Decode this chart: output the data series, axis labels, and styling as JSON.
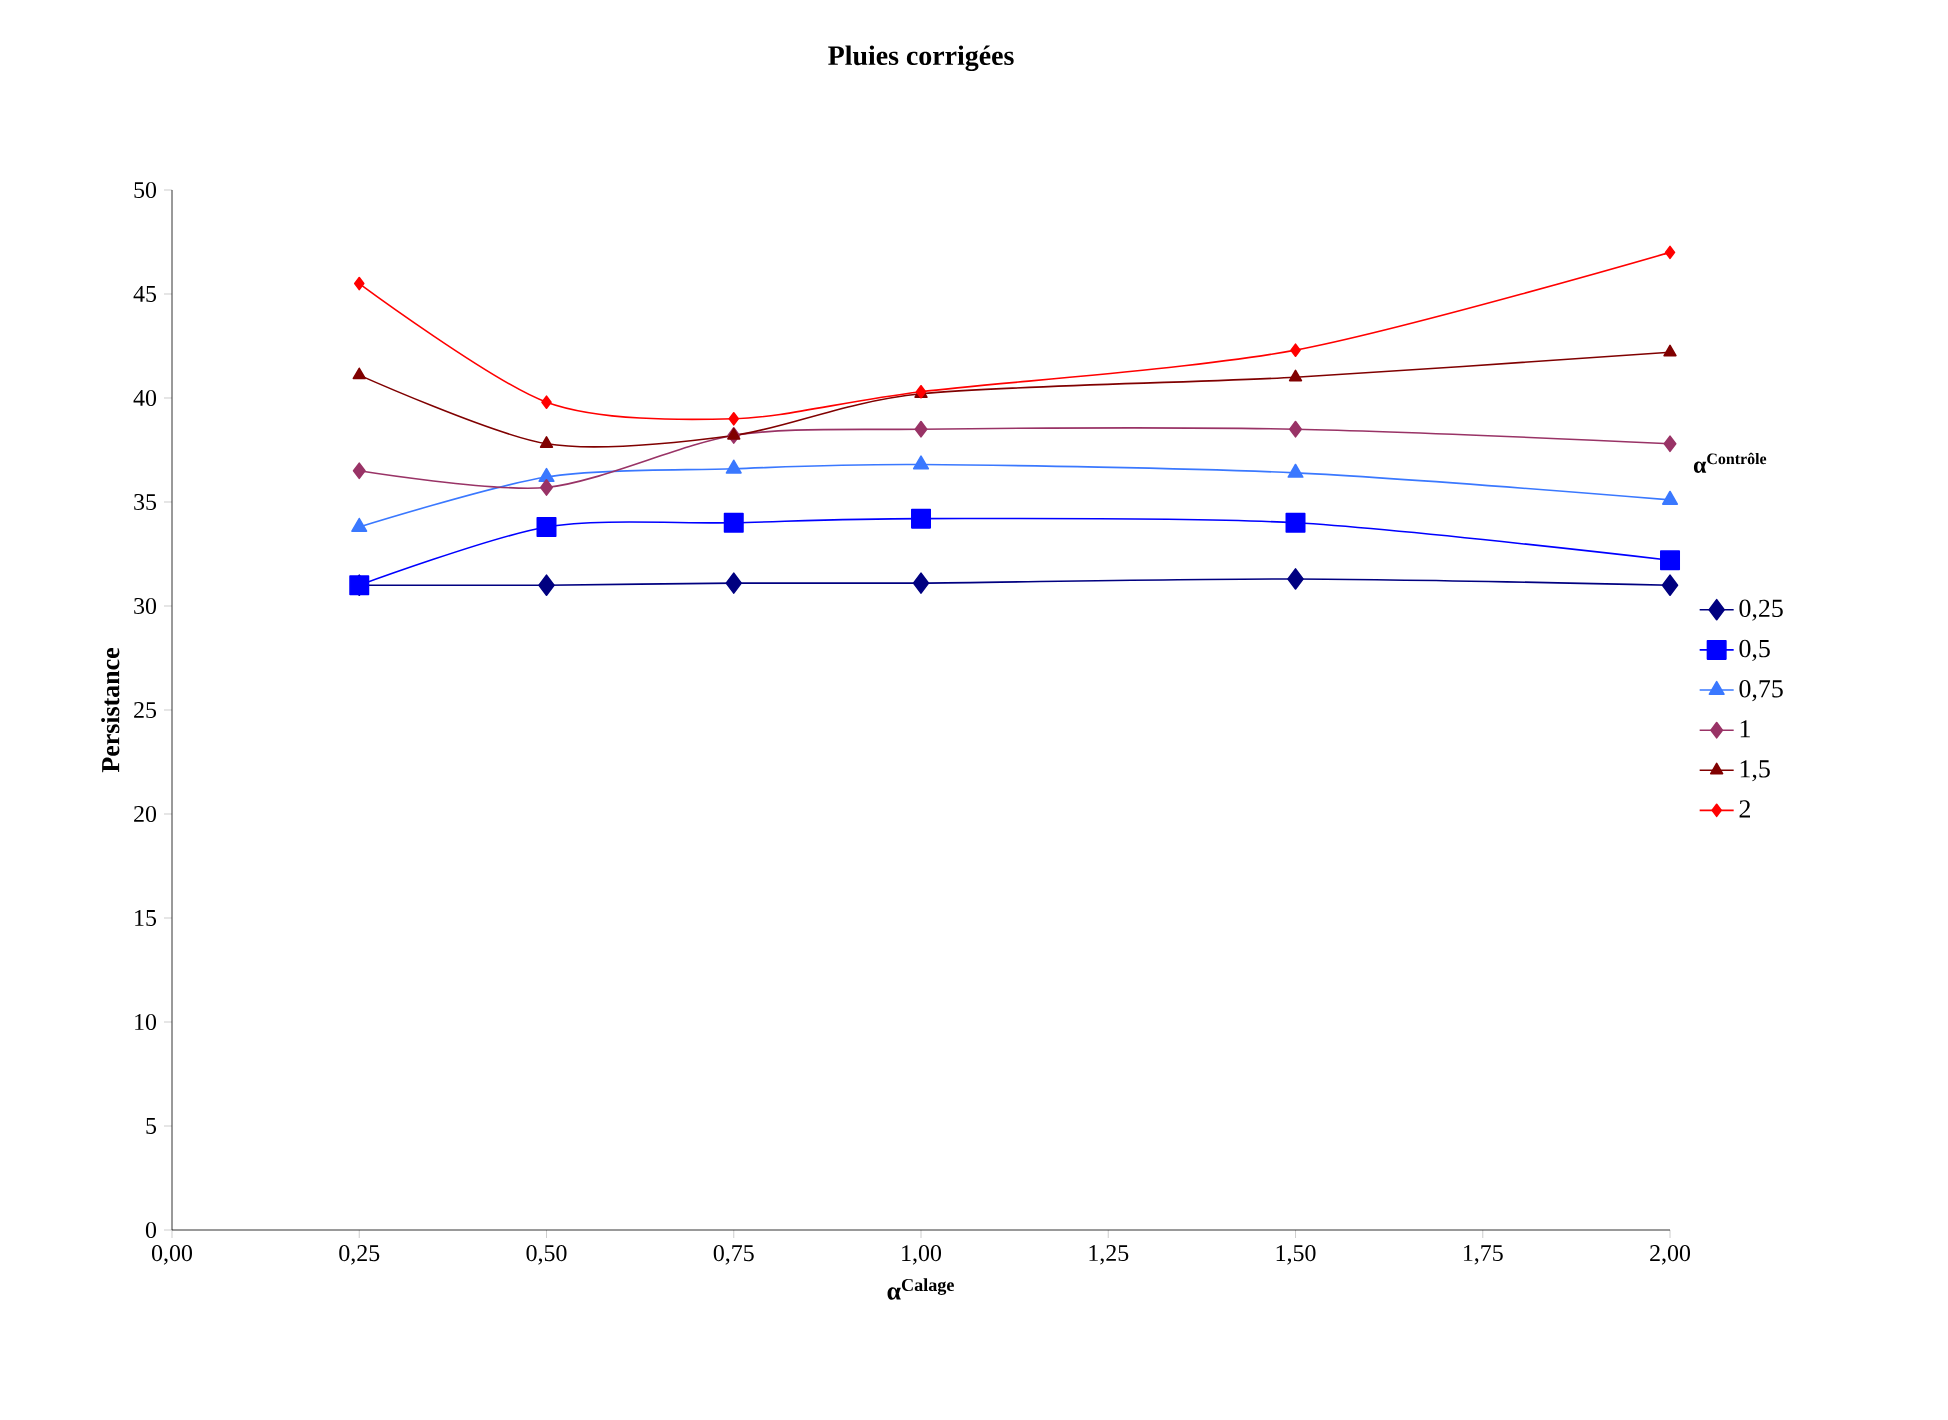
{
  "chart_data": {
    "type": "line",
    "title": "Pluies corrigées",
    "xlabel": "α$^{Calage}$",
    "ylabel": "Persistance",
    "legend_title": "α$^{Contrôle}$",
    "x": [
      0.25,
      0.5,
      0.75,
      1.0,
      1.5,
      2.0
    ],
    "series": [
      {
        "name": "0,25",
        "color": "#000080",
        "marker": "diamond",
        "values": [
          31.0,
          31.0,
          31.1,
          31.1,
          31.3,
          31.0
        ]
      },
      {
        "name": "0,5",
        "color": "#0000ff",
        "marker": "square",
        "values": [
          31.0,
          33.8,
          34.0,
          34.2,
          34.0,
          32.2
        ]
      },
      {
        "name": "0,75",
        "color": "#3a78ff",
        "marker": "triangle",
        "values": [
          33.8,
          36.2,
          36.6,
          36.8,
          36.4,
          35.1
        ]
      },
      {
        "name": "1",
        "color": "#993366",
        "marker": "diamond",
        "values": [
          36.5,
          35.7,
          38.2,
          38.5,
          38.5,
          37.8
        ]
      },
      {
        "name": "1,5",
        "color": "#800000",
        "marker": "triangle",
        "values": [
          41.1,
          37.8,
          38.2,
          40.2,
          41.0,
          42.2
        ]
      },
      {
        "name": "2",
        "color": "#ff0000",
        "marker": "diamond",
        "values": [
          45.5,
          39.8,
          39.0,
          40.3,
          42.3,
          47.0
        ]
      }
    ],
    "xlim": [
      0,
      2
    ],
    "xticks": [
      {
        "value": 0,
        "label": "0,00"
      },
      {
        "value": 0.25,
        "label": "0,25"
      },
      {
        "value": 0.5,
        "label": "0,50"
      },
      {
        "value": 0.75,
        "label": "0,75"
      },
      {
        "value": 1,
        "label": "1,00"
      },
      {
        "value": 1.25,
        "label": "1,25"
      },
      {
        "value": 1.5,
        "label": "1,50"
      },
      {
        "value": 1.75,
        "label": "1,75"
      },
      {
        "value": 2,
        "label": "2,00"
      }
    ],
    "ylim": [
      0,
      50
    ],
    "yticks": [
      0,
      5,
      10,
      15,
      20,
      25,
      30,
      35,
      40,
      45,
      50
    ],
    "grid": false,
    "legend": "right",
    "line_style": "solid"
  }
}
